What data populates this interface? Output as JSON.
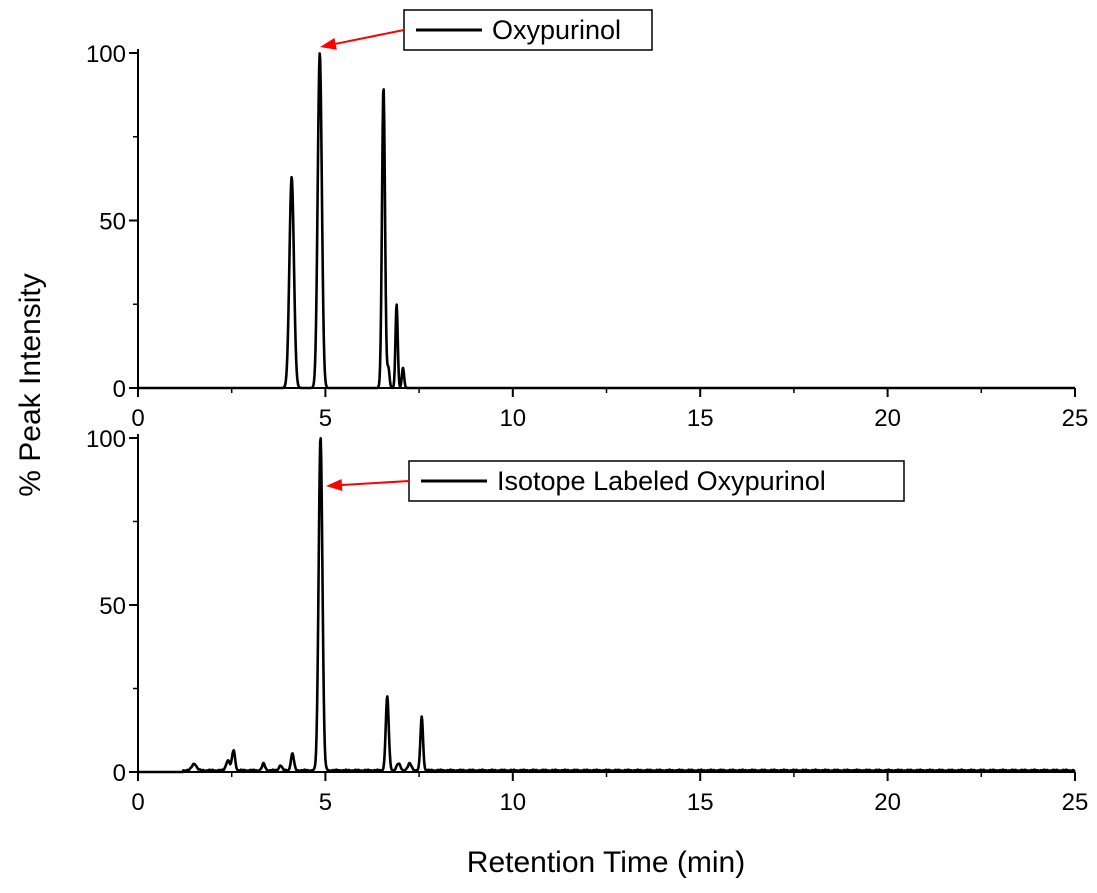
{
  "chart_data": [
    {
      "type": "line",
      "ylabel": "% Peak Intensity",
      "xlabel": "Retention Time (min)",
      "xlim": [
        0,
        25
      ],
      "ylim": [
        0,
        100
      ],
      "xticks": [
        0,
        5,
        10,
        15,
        20,
        25
      ],
      "yticks": [
        0,
        50,
        100
      ],
      "grid": false,
      "legend": "top-center",
      "series": [
        {
          "name": "Oxypurinol",
          "color": "#000000",
          "peaks": [
            {
              "rt": 4.1,
              "height": 63,
              "width": 0.06
            },
            {
              "rt": 4.85,
              "height": 100,
              "width": 0.055
            },
            {
              "rt": 6.55,
              "height": 90,
              "width": 0.04
            },
            {
              "rt": 6.68,
              "height": 6,
              "width": 0.03
            },
            {
              "rt": 6.9,
              "height": 25,
              "width": 0.03
            },
            {
              "rt": 7.07,
              "height": 6,
              "width": 0.03
            }
          ]
        }
      ],
      "annotation": {
        "label": "Oxypurinol",
        "points_to": {
          "x": 4.85,
          "y": 100
        },
        "color": "#ff0000"
      }
    },
    {
      "type": "line",
      "ylabel": "% Peak Intensity",
      "xlabel": "Retention Time (min)",
      "xlim": [
        0,
        25
      ],
      "ylim": [
        0,
        100
      ],
      "xticks": [
        0,
        5,
        10,
        15,
        20,
        25
      ],
      "yticks": [
        0,
        50,
        100
      ],
      "grid": false,
      "legend": "top-center",
      "series": [
        {
          "name": "Isotope Labeled Oxypurinol",
          "color": "#000000",
          "peaks": [
            {
              "rt": 1.5,
              "height": 2,
              "width": 0.06
            },
            {
              "rt": 2.4,
              "height": 3,
              "width": 0.05
            },
            {
              "rt": 2.55,
              "height": 6,
              "width": 0.04
            },
            {
              "rt": 3.35,
              "height": 2,
              "width": 0.04
            },
            {
              "rt": 3.8,
              "height": 1.5,
              "width": 0.04
            },
            {
              "rt": 4.12,
              "height": 5,
              "width": 0.04
            },
            {
              "rt": 4.87,
              "height": 100,
              "width": 0.05
            },
            {
              "rt": 6.65,
              "height": 22,
              "width": 0.04
            },
            {
              "rt": 6.95,
              "height": 2,
              "width": 0.05
            },
            {
              "rt": 7.25,
              "height": 2,
              "width": 0.05
            },
            {
              "rt": 7.57,
              "height": 16,
              "width": 0.035
            }
          ]
        }
      ],
      "annotation": {
        "label": "Isotope Labeled Oxypurinol",
        "points_to": {
          "x": 4.9,
          "y": 85
        },
        "color": "#ff0000"
      }
    }
  ]
}
